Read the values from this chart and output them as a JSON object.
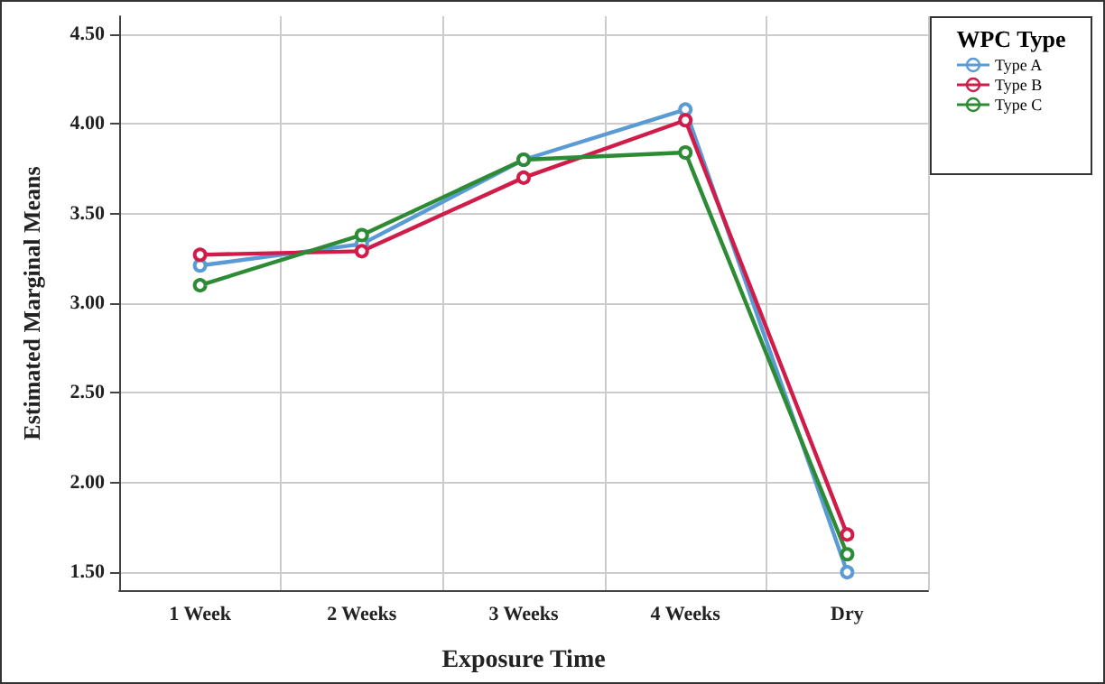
{
  "chart_data": {
    "type": "line",
    "xlabel": "Exposure Time",
    "ylabel": "Estimated Marginal Means",
    "legend_title": "WPC Type",
    "categories": [
      "1 Week",
      "2 Weeks",
      "3 Weeks",
      "4 Weeks",
      "Dry"
    ],
    "series": [
      {
        "name": "Type A",
        "color": "#5b9bd5",
        "values": [
          3.21,
          3.33,
          3.8,
          4.08,
          1.5
        ]
      },
      {
        "name": "Type B",
        "color": "#d01c48",
        "values": [
          3.27,
          3.29,
          3.7,
          4.02,
          1.71
        ]
      },
      {
        "name": "Type C",
        "color": "#2e8b35",
        "values": [
          3.1,
          3.38,
          3.8,
          3.84,
          1.6
        ]
      }
    ],
    "ylim": [
      1.4,
      4.6
    ],
    "yticks": [
      {
        "value": 1.5,
        "label": "1.50"
      },
      {
        "value": 2,
        "label": "2.00"
      },
      {
        "value": 2.5,
        "label": "2.50"
      },
      {
        "value": 3,
        "label": "3.00"
      },
      {
        "value": 3.5,
        "label": "3.50"
      },
      {
        "value": 4,
        "label": "4.00"
      },
      {
        "value": 4.5,
        "label": "4.50"
      }
    ],
    "grid": true,
    "legend": "top right",
    "marker": "circle",
    "line_style": "solid"
  }
}
